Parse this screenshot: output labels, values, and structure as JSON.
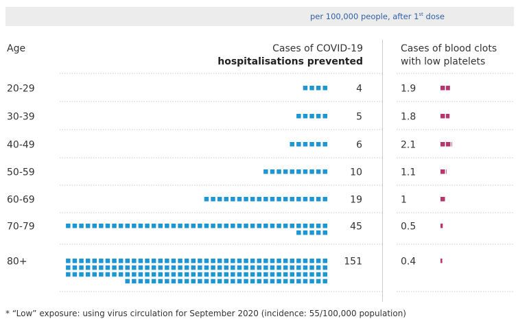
{
  "banner": {
    "prefix": "per 100,000 people, after 1",
    "sup": "st",
    "suffix": " dose"
  },
  "headers": {
    "age": "Age",
    "prevented_line1": "Cases of COVID-19",
    "prevented_line2": "hospitalisations prevented",
    "clots_line1": "Cases of blood clots",
    "clots_line2": "with low platelets"
  },
  "footnote": "* “Low” exposure: using virus circulation for September 2020 (incidence: 55/100,000 population)",
  "colors": {
    "prevented": "#1e96d2",
    "clots": "#b5366f",
    "gridline": "#c8c8c8"
  },
  "chart_data": {
    "type": "table",
    "categories": [
      "20-29",
      "30-39",
      "40-49",
      "50-59",
      "60-69",
      "70-79",
      "80+"
    ],
    "series": [
      {
        "name": "Cases of COVID-19 hospitalisations prevented",
        "values": [
          4,
          5,
          6,
          10,
          19,
          45,
          151
        ],
        "labels": [
          "4",
          "5",
          "6",
          "10",
          "19",
          "45",
          "151"
        ]
      },
      {
        "name": "Cases of blood clots with low platelets",
        "values": [
          1.9,
          1.8,
          2.1,
          1.1,
          1,
          0.5,
          0.4
        ],
        "labels": [
          "1.9",
          "1.8",
          "2.1",
          "1.1",
          "1",
          "0.5",
          "0.4"
        ]
      }
    ]
  }
}
